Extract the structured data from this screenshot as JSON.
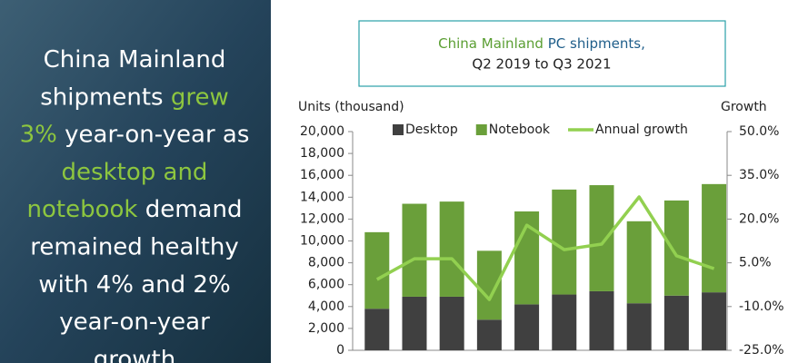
{
  "panel": {
    "lines": [
      [
        {
          "text": "China Mainland",
          "color": "#ffffff"
        }
      ],
      [
        {
          "text": "shipments ",
          "color": "#ffffff"
        },
        {
          "text": "grew",
          "color": "#8dc63f"
        }
      ],
      [
        {
          "text": "3%",
          "color": "#8dc63f"
        },
        {
          "text": " year-on-year as",
          "color": "#ffffff"
        }
      ],
      [
        {
          "text": "desktop and",
          "color": "#8dc63f"
        }
      ],
      [
        {
          "text": "notebook",
          "color": "#8dc63f"
        },
        {
          "text": " demand",
          "color": "#ffffff"
        }
      ],
      [
        {
          "text": "remained healthy",
          "color": "#ffffff"
        }
      ],
      [
        {
          "text": "with 4% and 2%",
          "color": "#ffffff"
        }
      ],
      [
        {
          "text": "year-on-year",
          "color": "#ffffff"
        }
      ],
      [
        {
          "text": "growth",
          "color": "#ffffff"
        }
      ]
    ]
  },
  "chart_data": {
    "type": "bar",
    "title": [
      {
        "text": "China Mainland",
        "color": "#5a9e32"
      },
      {
        "text": " PC shipments,",
        "color": "#1f5e8a"
      }
    ],
    "subtitle": "Q2 2019 to Q3 2021",
    "ylabel": "Units (thousand)",
    "y2label": "Growth",
    "categories": [
      null,
      null,
      null,
      null,
      null,
      null,
      null,
      null,
      null,
      null
    ],
    "series": [
      {
        "name": "Desktop",
        "color": "#404040",
        "stack": true,
        "values": [
          3800,
          4900,
          4900,
          2800,
          4200,
          5100,
          5400,
          4300,
          5000,
          5300
        ]
      },
      {
        "name": "Notebook",
        "color": "#6a9f3a",
        "stack": true,
        "values": [
          7000,
          8500,
          8700,
          6300,
          8500,
          9600,
          9700,
          7500,
          8700,
          9900
        ]
      },
      {
        "name": "Annual growth",
        "color": "#92d050",
        "type": "line",
        "axis": "y2",
        "values": [
          -0.7,
          6.4,
          6.4,
          -7.6,
          17.9,
          9.5,
          11.4,
          27.6,
          7.4,
          3.0
        ]
      }
    ],
    "ylim": [
      0,
      20000
    ],
    "yticks": [
      0,
      {
        "value": 2000,
        "label": "2,000"
      },
      {
        "value": 4000,
        "label": "4,000"
      },
      {
        "value": 6000,
        "label": "6,000"
      },
      {
        "value": 8000,
        "label": "8,000"
      },
      {
        "value": 10000,
        "label": "10,000"
      },
      {
        "value": 12000,
        "label": "12,000"
      },
      {
        "value": 14000,
        "label": "14,000"
      },
      {
        "value": 16000,
        "label": "16,000"
      },
      {
        "value": 18000,
        "label": "18,000"
      },
      {
        "value": 20000,
        "label": "20,000"
      }
    ],
    "y2lim": [
      -25,
      50
    ],
    "y2ticks": [
      {
        "value": -25,
        "label": "-25.0%"
      },
      {
        "value": -10,
        "label": "-10.0%"
      },
      {
        "value": 5,
        "label": "5.0%"
      },
      {
        "value": 20,
        "label": "20.0%"
      },
      {
        "value": 35,
        "label": "35.0%"
      },
      {
        "value": 50,
        "label": "50.0%"
      }
    ],
    "legend": "top"
  }
}
